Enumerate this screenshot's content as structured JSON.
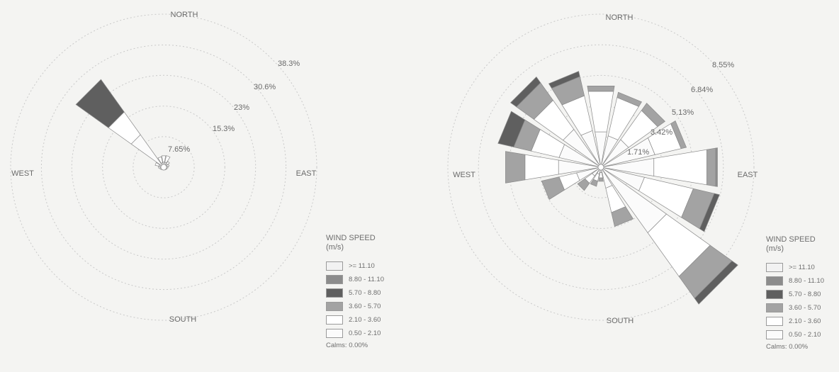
{
  "chart_data": [
    {
      "type": "windrose",
      "directions": [
        "N",
        "NNE",
        "NE",
        "ENE",
        "E",
        "ESE",
        "SE",
        "SSE",
        "S",
        "SSW",
        "SW",
        "WSW",
        "W",
        "WNW",
        "NW",
        "NNW"
      ],
      "compass_labels": {
        "north": "NORTH",
        "east": "EAST",
        "south": "SOUTH",
        "west": "WEST"
      },
      "ring_values": [
        7.65,
        15.3,
        23,
        30.6,
        38.3
      ],
      "ring_labels": [
        "7.65%",
        "15.3%",
        "23%",
        "30.6%",
        "38.3%"
      ],
      "speed_bins": [
        ">= 11.10",
        "8.80 - 11.10",
        "5.70 - 8.80",
        "3.60 - 5.70",
        "2.10 - 3.60",
        "0.50 - 2.10"
      ],
      "bin_colors": [
        "#f2f2f2",
        "#8c8c8c",
        "#5f5f5f",
        "#a3a3a3",
        "#ffffff",
        "#fbfbfb"
      ],
      "frequencies_percent": [
        [
          0,
          0,
          0,
          0,
          1.6,
          1.3
        ],
        [
          0,
          0,
          0,
          0,
          1.7,
          1.3
        ],
        [
          0,
          0,
          0,
          0,
          0.8,
          1.0
        ],
        [
          0,
          0,
          0,
          0,
          0.6,
          0.8
        ],
        [
          0,
          0,
          0,
          0,
          0.5,
          0.6
        ],
        [
          0,
          0,
          0,
          0,
          0.4,
          0.5
        ],
        [
          0,
          0,
          0,
          0,
          0.3,
          0.5
        ],
        [
          0,
          0,
          0,
          0,
          0.3,
          0.4
        ],
        [
          0,
          0,
          0,
          0,
          0.3,
          0.4
        ],
        [
          0,
          0,
          0,
          0,
          0.3,
          0.4
        ],
        [
          0,
          0,
          0,
          0,
          0.3,
          0.5
        ],
        [
          0,
          0,
          0,
          0,
          0.4,
          0.6
        ],
        [
          0,
          0,
          0,
          0,
          0.5,
          0.8
        ],
        [
          0,
          0,
          0,
          0,
          1.0,
          1.2
        ],
        [
          0,
          0,
          10.0,
          0,
          7.0,
          10.0
        ],
        [
          0,
          0,
          0,
          0,
          1.5,
          1.2
        ]
      ],
      "legend": {
        "title": "WIND SPEED",
        "unit": "(m/s)",
        "calms": "Calms: 0.00%"
      }
    },
    {
      "type": "windrose",
      "directions": [
        "N",
        "NNE",
        "NE",
        "ENE",
        "E",
        "ESE",
        "SE",
        "SSE",
        "S",
        "SSW",
        "SW",
        "WSW",
        "W",
        "WNW",
        "NW",
        "NNW"
      ],
      "compass_labels": {
        "north": "NORTH",
        "east": "EAST",
        "south": "SOUTH",
        "west": "WEST"
      },
      "ring_values": [
        1.71,
        3.42,
        5.13,
        6.84,
        8.55
      ],
      "ring_labels": [
        "1.71%",
        "3.42%",
        "5.13%",
        "6.84%",
        "8.55%"
      ],
      "speed_bins": [
        ">= 11.10",
        "8.80 - 11.10",
        "5.70 - 8.80",
        "3.60 - 5.70",
        "2.10 - 3.60",
        "0.50 - 2.10"
      ],
      "bin_colors": [
        "#f2f2f2",
        "#8c8c8c",
        "#5f5f5f",
        "#a3a3a3",
        "#ffffff",
        "#fbfbfb"
      ],
      "frequencies_percent": [
        [
          0,
          0,
          0,
          0.3,
          2.3,
          2.0
        ],
        [
          0,
          0,
          0,
          0.3,
          2.2,
          1.8
        ],
        [
          0,
          0,
          0,
          0.5,
          2.0,
          1.9
        ],
        [
          0,
          0,
          0,
          0.3,
          1.5,
          3.1
        ],
        [
          0,
          0.1,
          0,
          0.5,
          3.0,
          3.0
        ],
        [
          0,
          0,
          0.3,
          1.2,
          2.8,
          2.5
        ],
        [
          0,
          0,
          0.4,
          1.5,
          3.0,
          4.5
        ],
        [
          0,
          0,
          0,
          0.8,
          1.4,
          1.2
        ],
        [
          0,
          0,
          0,
          0.2,
          0.3,
          0.3
        ],
        [
          0,
          0,
          0,
          0.3,
          0.4,
          0.4
        ],
        [
          0,
          0,
          0,
          0.5,
          0.5,
          0.6
        ],
        [
          0,
          0,
          0,
          1.0,
          1.0,
          1.4
        ],
        [
          0,
          0,
          0,
          1.1,
          1.9,
          2.4
        ],
        [
          0,
          0,
          0.9,
          1.0,
          1.6,
          2.4
        ],
        [
          0,
          0,
          0.4,
          1.2,
          2.0,
          2.6
        ],
        [
          0,
          0,
          0.3,
          1.1,
          2.0,
          2.1
        ]
      ],
      "legend": {
        "title": "WIND SPEED",
        "unit": "(m/s)",
        "calms": "Calms: 0.00%"
      }
    }
  ]
}
